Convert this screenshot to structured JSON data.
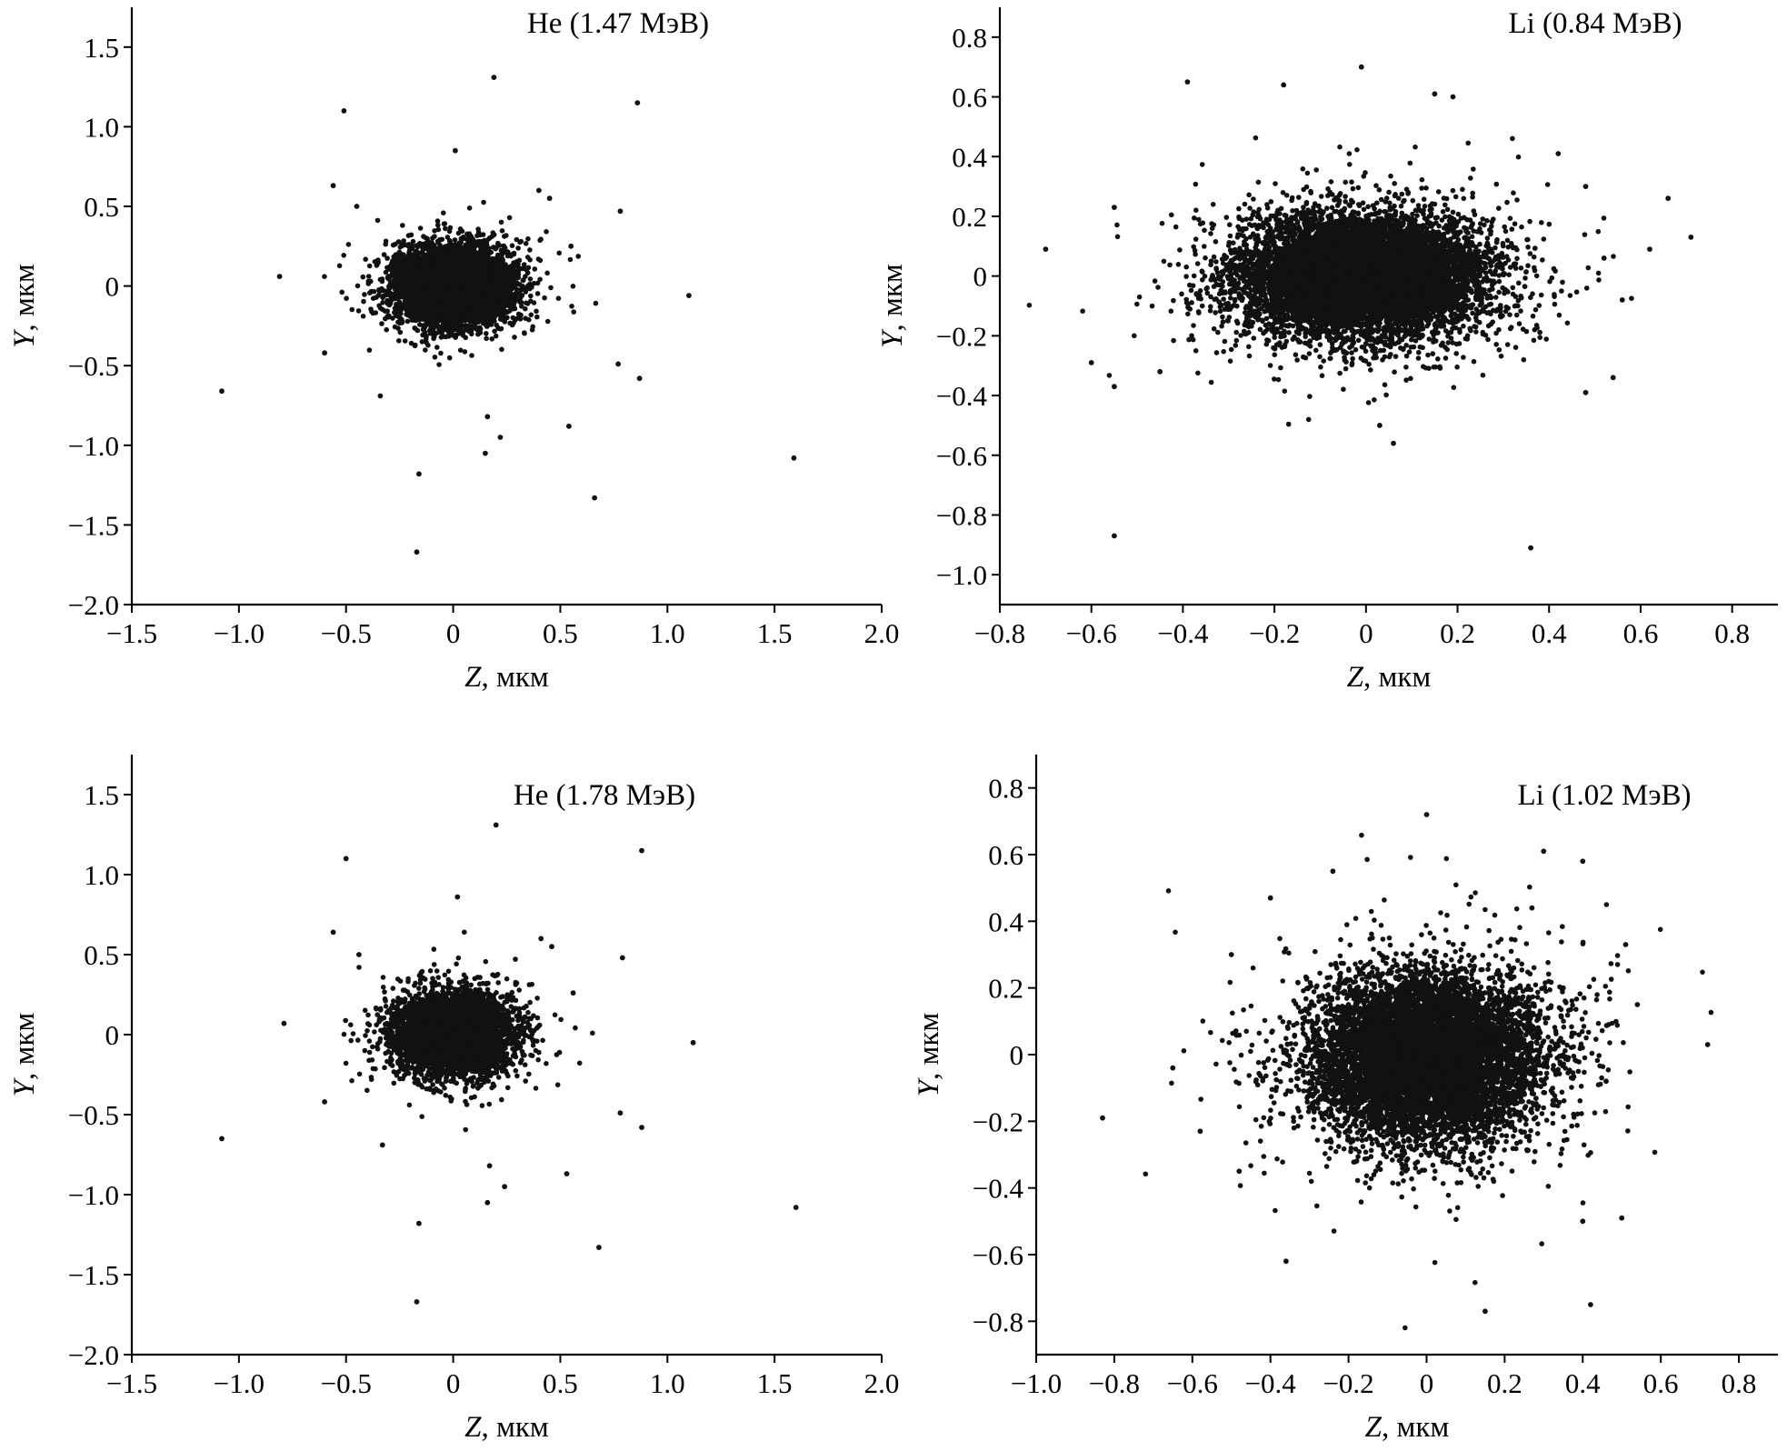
{
  "chart_data": [
    {
      "type": "scatter",
      "title": "He (1.47 МэВ)",
      "xlabel_var": "Z",
      "xlabel_unit": ", мкм",
      "ylabel_var": "Y",
      "ylabel_unit": ", мкм",
      "xlim": [
        -1.5,
        2.0
      ],
      "ylim": [
        -2.0,
        1.75
      ],
      "xticks": [
        -1.5,
        -1.0,
        -0.5,
        0,
        0.5,
        1.0,
        1.5,
        2.0
      ],
      "xtick_labels": [
        "−1.5",
        "−1.0",
        "−0.5",
        "0",
        "0.5",
        "1.0",
        "1.5",
        "2.0"
      ],
      "yticks": [
        -2.0,
        -1.5,
        -1.0,
        -0.5,
        0,
        0.5,
        1.0,
        1.5
      ],
      "ytick_labels": [
        "−2.0",
        "−1.5",
        "−1.0",
        "−0.5",
        "0",
        "0.5",
        "1.0",
        "1.5"
      ],
      "grid": false,
      "cloud": {
        "center": [
          0.0,
          0.0
        ],
        "sigma": [
          0.13,
          0.12
        ],
        "count": 5500
      },
      "outliers": [
        [
          0.19,
          1.31
        ],
        [
          -0.51,
          1.1
        ],
        [
          0.86,
          1.15
        ],
        [
          0.01,
          0.85
        ],
        [
          -0.56,
          0.63
        ],
        [
          -0.81,
          0.06
        ],
        [
          0.78,
          0.47
        ],
        [
          1.1,
          -0.06
        ],
        [
          -1.08,
          -0.66
        ],
        [
          -0.34,
          -0.69
        ],
        [
          0.77,
          -0.49
        ],
        [
          0.87,
          -0.58
        ],
        [
          0.54,
          -0.88
        ],
        [
          0.16,
          -0.82
        ],
        [
          0.22,
          -0.95
        ],
        [
          0.15,
          -1.05
        ],
        [
          -0.16,
          -1.18
        ],
        [
          1.59,
          -1.08
        ],
        [
          0.66,
          -1.33
        ],
        [
          -0.17,
          -1.67
        ],
        [
          -0.6,
          -0.42
        ],
        [
          0.4,
          0.6
        ],
        [
          0.45,
          0.55
        ],
        [
          -0.45,
          0.5
        ],
        [
          0.55,
          0.25
        ]
      ]
    },
    {
      "type": "scatter",
      "title": "Li (0.84 МэВ)",
      "xlabel_var": "Z",
      "xlabel_unit": ", мкм",
      "ylabel_var": "Y",
      "ylabel_unit": ", мкм",
      "xlim": [
        -0.8,
        0.9
      ],
      "ylim": [
        -1.1,
        0.9
      ],
      "xticks": [
        -0.8,
        -0.6,
        -0.4,
        -0.2,
        0,
        0.2,
        0.4,
        0.6,
        0.8
      ],
      "xtick_labels": [
        "−0.8",
        "−0.6",
        "−0.4",
        "−0.2",
        "0",
        "0.2",
        "0.4",
        "0.6",
        "0.8"
      ],
      "yticks": [
        -1.0,
        -0.8,
        -0.6,
        -0.4,
        -0.2,
        0,
        0.2,
        0.4,
        0.6,
        0.8
      ],
      "ytick_labels": [
        "−1.0",
        "−0.8",
        "−0.6",
        "−0.4",
        "−0.2",
        "0",
        "0.2",
        "0.4",
        "0.6",
        "0.8"
      ],
      "grid": false,
      "cloud": {
        "center": [
          -0.01,
          0.0
        ],
        "sigma": [
          0.13,
          0.1
        ],
        "count": 9000
      },
      "outliers": [
        [
          -0.01,
          0.7
        ],
        [
          -0.39,
          0.65
        ],
        [
          -0.18,
          0.64
        ],
        [
          0.15,
          0.61
        ],
        [
          0.19,
          0.6
        ],
        [
          -0.7,
          0.09
        ],
        [
          0.71,
          0.13
        ],
        [
          0.66,
          0.26
        ],
        [
          0.62,
          0.09
        ],
        [
          0.56,
          -0.08
        ],
        [
          0.54,
          -0.34
        ],
        [
          -0.6,
          -0.29
        ],
        [
          -0.55,
          -0.37
        ],
        [
          -0.55,
          -0.87
        ],
        [
          0.36,
          -0.91
        ],
        [
          0.06,
          -0.56
        ],
        [
          0.03,
          -0.5
        ],
        [
          0.48,
          -0.39
        ],
        [
          0.48,
          0.3
        ],
        [
          0.42,
          0.41
        ],
        [
          -0.55,
          0.23
        ],
        [
          -0.45,
          -0.32
        ],
        [
          0.52,
          0.06
        ]
      ]
    },
    {
      "type": "scatter",
      "title": "He (1.78 МэВ)",
      "xlabel_var": "Z",
      "xlabel_unit": ", мкм",
      "ylabel_var": "Y",
      "ylabel_unit": ", мкм",
      "xlim": [
        -1.5,
        2.0
      ],
      "ylim": [
        -2.0,
        1.75
      ],
      "xticks": [
        -1.5,
        -1.0,
        -0.5,
        0,
        0.5,
        1.0,
        1.5,
        2.0
      ],
      "xtick_labels": [
        "−1.5",
        "−1.0",
        "−0.5",
        "0",
        "0.5",
        "1.0",
        "1.5",
        "2.0"
      ],
      "yticks": [
        -2.0,
        -1.5,
        -1.0,
        -0.5,
        0,
        0.5,
        1.0,
        1.5
      ],
      "ytick_labels": [
        "−2.0",
        "−1.5",
        "−1.0",
        "−0.5",
        "0",
        "0.5",
        "1.0",
        "1.5"
      ],
      "grid": false,
      "cloud": {
        "center": [
          0.0,
          0.0
        ],
        "sigma": [
          0.13,
          0.12
        ],
        "count": 5500
      },
      "outliers": [
        [
          0.2,
          1.31
        ],
        [
          -0.5,
          1.1
        ],
        [
          0.88,
          1.15
        ],
        [
          0.02,
          0.86
        ],
        [
          -0.56,
          0.64
        ],
        [
          -0.79,
          0.07
        ],
        [
          0.79,
          0.48
        ],
        [
          1.12,
          -0.05
        ],
        [
          -1.08,
          -0.65
        ],
        [
          -0.33,
          -0.69
        ],
        [
          0.78,
          -0.49
        ],
        [
          0.88,
          -0.58
        ],
        [
          0.53,
          -0.87
        ],
        [
          0.17,
          -0.82
        ],
        [
          0.24,
          -0.95
        ],
        [
          0.16,
          -1.05
        ],
        [
          -0.16,
          -1.18
        ],
        [
          1.6,
          -1.08
        ],
        [
          0.68,
          -1.33
        ],
        [
          -0.17,
          -1.67
        ],
        [
          -0.6,
          -0.42
        ],
        [
          0.41,
          0.6
        ],
        [
          0.46,
          0.55
        ],
        [
          -0.44,
          0.5
        ],
        [
          0.56,
          0.26
        ]
      ]
    },
    {
      "type": "scatter",
      "title": "Li (1.02 МэВ)",
      "xlabel_var": "Z",
      "xlabel_unit": ", мкм",
      "ylabel_var": "Y",
      "ylabel_unit": ", мкм",
      "xlim": [
        -1.0,
        0.9
      ],
      "ylim": [
        -0.9,
        0.9
      ],
      "xticks": [
        -1.0,
        -0.8,
        -0.6,
        -0.4,
        -0.2,
        0,
        0.2,
        0.4,
        0.6,
        0.8
      ],
      "xtick_labels": [
        "−1.0",
        "−0.8",
        "−0.6",
        "−0.4",
        "−0.2",
        "0",
        "0.2",
        "0.4",
        "0.6",
        "0.8"
      ],
      "yticks": [
        -0.8,
        -0.6,
        -0.4,
        -0.2,
        0,
        0.2,
        0.4,
        0.6,
        0.8
      ],
      "ytick_labels": [
        "−0.8",
        "−0.6",
        "−0.4",
        "−0.2",
        "0",
        "0.2",
        "0.4",
        "0.6",
        "0.8"
      ],
      "grid": false,
      "cloud": {
        "center": [
          0.0,
          -0.01
        ],
        "sigma": [
          0.14,
          0.12
        ],
        "count": 9000
      },
      "outliers": [
        [
          0.0,
          0.72
        ],
        [
          0.3,
          0.61
        ],
        [
          0.4,
          0.58
        ],
        [
          -0.4,
          0.47
        ],
        [
          -0.83,
          -0.19
        ],
        [
          -0.65,
          -0.04
        ],
        [
          0.72,
          0.03
        ],
        [
          0.51,
          0.33
        ],
        [
          0.54,
          0.15
        ],
        [
          -0.36,
          -0.62
        ],
        [
          0.42,
          -0.75
        ],
        [
          0.15,
          -0.77
        ],
        [
          0.5,
          -0.49
        ],
        [
          0.4,
          -0.5
        ],
        [
          -0.58,
          -0.23
        ],
        [
          -0.5,
          0.3
        ],
        [
          0.46,
          -0.08
        ],
        [
          0.27,
          0.44
        ],
        [
          -0.24,
          0.55
        ],
        [
          0.35,
          0.2
        ],
        [
          -0.48,
          -0.35
        ]
      ]
    }
  ]
}
